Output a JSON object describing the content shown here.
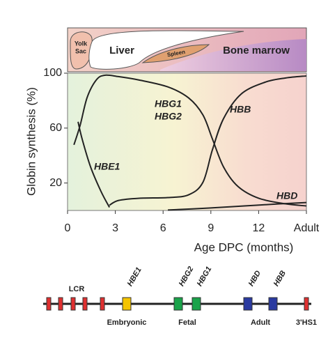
{
  "chart_data": {
    "type": "line",
    "x_label": "Age DPC (months)",
    "y_label": "Globin synthesis (%)",
    "xlim": [
      0,
      15
    ],
    "ylim": [
      0,
      100
    ],
    "xticks": [
      0,
      3,
      6,
      9,
      12,
      {
        "value": 15,
        "label": "Adult"
      }
    ],
    "yticks": [
      20,
      60,
      100
    ],
    "series": [
      {
        "name": "HBE1",
        "color": "#222222",
        "x": [
          0.66,
          0.92,
          1.45,
          2.1,
          2.63
        ],
        "values": [
          64.6,
          51.9,
          31.6,
          13.9,
          2.3
        ]
      },
      {
        "name": "HBG1 HBG2",
        "color": "#222222",
        "x": [
          0.4,
          0.79,
          1.23,
          1.8,
          2.33,
          3.2,
          4.5,
          6.3,
          7.6,
          8.5,
          9.1,
          9.8,
          10.7,
          12,
          13.7,
          15
        ],
        "values": [
          47.8,
          62,
          82.3,
          95,
          98.5,
          97.5,
          95,
          90,
          82,
          69.6,
          52,
          31.6,
          17.5,
          8.9,
          4.8,
          3.3
        ]
      },
      {
        "name": "HBB",
        "color": "#222222",
        "x": [
          2.63,
          3.2,
          4.5,
          6.3,
          7.6,
          8.5,
          9.1,
          9.8,
          10.9,
          12.4,
          13.7,
          15
        ],
        "values": [
          3.8,
          7.3,
          8.9,
          9.4,
          11.4,
          20.5,
          44.3,
          67,
          84.8,
          93.4,
          96.5,
          98
        ]
      },
      {
        "name": "HBD",
        "color": "#222222",
        "x": [
          6.3,
          8.9,
          11.1,
          13.3,
          15
        ],
        "values": [
          0.3,
          1.8,
          3.3,
          4.8,
          5.8
        ]
      }
    ],
    "annotations": [
      "HBE1",
      "HBG1",
      "HBG2",
      "HBB",
      "HBD"
    ]
  },
  "tissues": [
    "Yolk",
    "Sac",
    "Liver",
    "Spleen",
    "Bone marrow"
  ],
  "gene_map": {
    "genes": [
      "HBE1",
      "HBG2",
      "HBG1",
      "HBD",
      "HBB"
    ],
    "lcr": "LCR",
    "stages": [
      "Embryonic",
      "Fetal",
      "Adult"
    ],
    "hs": "3'HS1"
  }
}
